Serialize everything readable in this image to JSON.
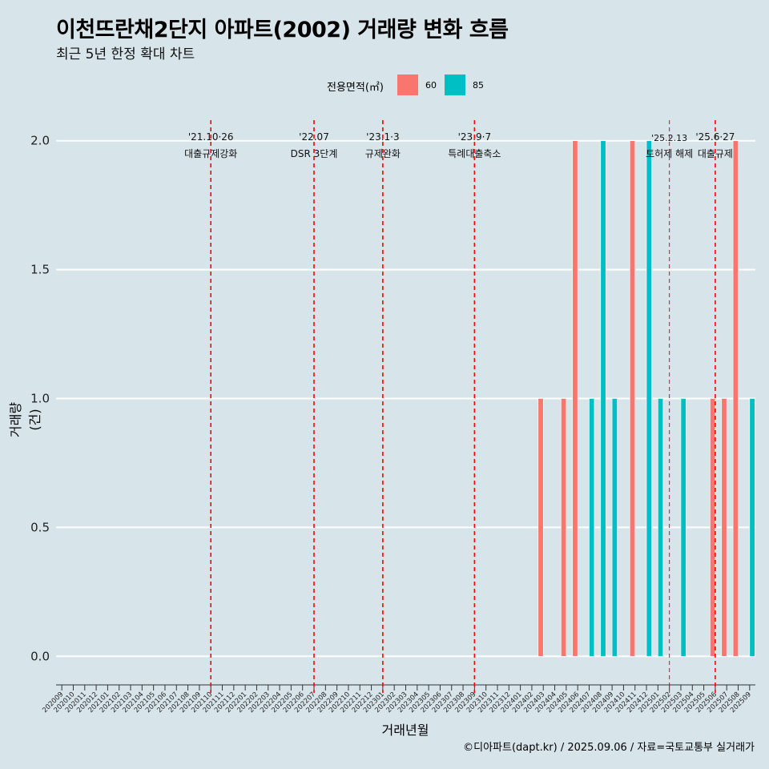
{
  "chart_data": {
    "type": "bar",
    "title": "이천뜨란채2단지 아파트(2002) 거래량 변화 흐름",
    "subtitle": "최근 5년 한정 확대 차트",
    "xlabel": "거래년월",
    "ylabel": "거래량(건)",
    "ylim": [
      -0.08,
      2.08
    ],
    "yticks": [
      "0.0",
      "0.5",
      "1.0",
      "1.5",
      "2.0"
    ],
    "grid": "horizontal major gridlines",
    "legend": {
      "title": "전용면적(㎡)",
      "position": "top",
      "entries": [
        {
          "label": "60",
          "color": "#f8766d"
        },
        {
          "label": "85",
          "color": "#00bfc4"
        }
      ]
    },
    "categories": [
      "202009",
      "202010",
      "202011",
      "202012",
      "202101",
      "202102",
      "202103",
      "202104",
      "202105",
      "202106",
      "202107",
      "202108",
      "202109",
      "202110",
      "202111",
      "202112",
      "202201",
      "202202",
      "202203",
      "202204",
      "202205",
      "202206",
      "202207",
      "202208",
      "202209",
      "202210",
      "202211",
      "202212",
      "202301",
      "202302",
      "202303",
      "202304",
      "202305",
      "202306",
      "202307",
      "202308",
      "202309",
      "202310",
      "202311",
      "202312",
      "202401",
      "202402",
      "202403",
      "202404",
      "202405",
      "202406",
      "202407",
      "202408",
      "202409",
      "202410",
      "202411",
      "202412",
      "202501",
      "202502",
      "202503",
      "202504",
      "202505",
      "202506",
      "202507",
      "202508",
      "202509"
    ],
    "series": [
      {
        "name": "60",
        "color": "#f8766d",
        "values": [
          0,
          0,
          0,
          0,
          0,
          0,
          0,
          0,
          0,
          0,
          0,
          0,
          0,
          0,
          0,
          0,
          0,
          0,
          0,
          0,
          0,
          0,
          0,
          0,
          0,
          0,
          0,
          0,
          0,
          0,
          0,
          0,
          0,
          0,
          0,
          0,
          0,
          0,
          0,
          0,
          0,
          0,
          1,
          0,
          1,
          2,
          0,
          0,
          0,
          0,
          2,
          0,
          0,
          0,
          0,
          0,
          0,
          1,
          1,
          2,
          0
        ]
      },
      {
        "name": "85",
        "color": "#00bfc4",
        "values": [
          0,
          0,
          0,
          0,
          0,
          0,
          0,
          0,
          0,
          0,
          0,
          0,
          0,
          0,
          0,
          0,
          0,
          0,
          0,
          0,
          0,
          0,
          0,
          0,
          0,
          0,
          0,
          0,
          0,
          0,
          0,
          0,
          0,
          0,
          0,
          0,
          0,
          0,
          0,
          0,
          0,
          0,
          0,
          0,
          0,
          0,
          1,
          2,
          1,
          0,
          0,
          2,
          1,
          0,
          1,
          0,
          0,
          0,
          0,
          0,
          1
        ]
      }
    ],
    "annotations": [
      {
        "month": "202110",
        "date": "'21.10·26",
        "label": "대출규제강화"
      },
      {
        "month": "202207",
        "date": "'22.07",
        "label": "DSR 3단계"
      },
      {
        "month": "202301",
        "date": "'23.1·3",
        "label": "규제완화"
      },
      {
        "month": "202309",
        "date": "'23.9·7",
        "label": "특례대출축소"
      },
      {
        "month": "202502",
        "date": "'25.2.13",
        "label": "토허제 해제"
      },
      {
        "month": "202506",
        "date": "'25.6·27",
        "label": "대출규제"
      }
    ],
    "annotation_line_color": "#ff0000"
  },
  "caption": "©디아파트(dapt.kr) / 2025.09.06 / 자료=국토교통부 실거래가"
}
